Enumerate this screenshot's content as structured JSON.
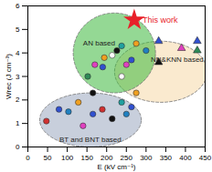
{
  "chart_data": {
    "type": "scatter",
    "xlabel": "E (kV cm⁻¹)",
    "ylabel": "Wrec (J cm⁻³)",
    "xlim": [
      0,
      450
    ],
    "ylim": [
      0,
      6
    ],
    "xticks": [
      0,
      50,
      100,
      150,
      200,
      250,
      300,
      350,
      400,
      450
    ],
    "yticks": [
      0,
      1,
      2,
      3,
      4,
      5,
      6
    ],
    "grid": false,
    "series": [
      {
        "name": "BT and BNT based",
        "color": "#9aa7c0",
        "marker": "circle",
        "region_x": [
          30,
          288
        ],
        "region_y": [
          0,
          2.3
        ],
        "label_x": 80,
        "label_y": 0.3,
        "x": [
          47,
          79,
          103,
          128,
          165,
          189,
          238,
          263,
          275,
          214,
          140,
          250
        ],
        "y": [
          1.1,
          1.6,
          1.5,
          1.9,
          1.4,
          1.6,
          1.9,
          1.7,
          2.3,
          1.2,
          0.9,
          1.4
        ],
        "colors": [
          "#d03030",
          "#3050d0",
          "#2080c0",
          "#f0a020",
          "#3050d0",
          "#d03030",
          "#20a0a0",
          "#3050d0",
          "#f0a020",
          "#111111",
          "#e040c0",
          "#2080c0"
        ]
      },
      {
        "name": "NN&KNN based",
        "color": "#f5d9a8",
        "marker": "triangle",
        "region_x": [
          220,
          455
        ],
        "region_y": [
          1.9,
          4.5
        ],
        "label_x": 312,
        "label_y": 3.7,
        "x": [
          332,
          390,
          430,
          430,
          332
        ],
        "y": [
          4.5,
          4.2,
          4.5,
          4.1,
          3.6
        ],
        "colors": [
          "#3050d0",
          "#e040c0",
          "#3050d0",
          "#2e8b57",
          "#111111"
        ]
      },
      {
        "name": "AN based",
        "color": "#3cb83c",
        "marker": "circle",
        "region_x": [
          115,
          324
        ],
        "region_y": [
          2.3,
          5.7
        ],
        "label_x": 140,
        "label_y": 4.4,
        "x": [
          152,
          170,
          190,
          194,
          214,
          226,
          238,
          250,
          263,
          275,
          165,
          238,
          300
        ],
        "y": [
          3.0,
          3.5,
          3.4,
          3.8,
          3.9,
          4.1,
          4.3,
          3.5,
          3.7,
          4.4,
          2.3,
          3.0,
          4.1
        ],
        "colors": [
          "#2e8b57",
          "#e040c0",
          "#3050d0",
          "#f0a020",
          "#ffffff",
          "#111111",
          "#20a0a0",
          "#e040c0",
          "#3050d0",
          "#f0a020",
          "#111111",
          "#ffffff",
          "#2080c0"
        ]
      }
    ],
    "highlight": {
      "label": "This work",
      "x": 270,
      "y": 5.4,
      "color": "#e8202a",
      "marker": "star"
    }
  }
}
